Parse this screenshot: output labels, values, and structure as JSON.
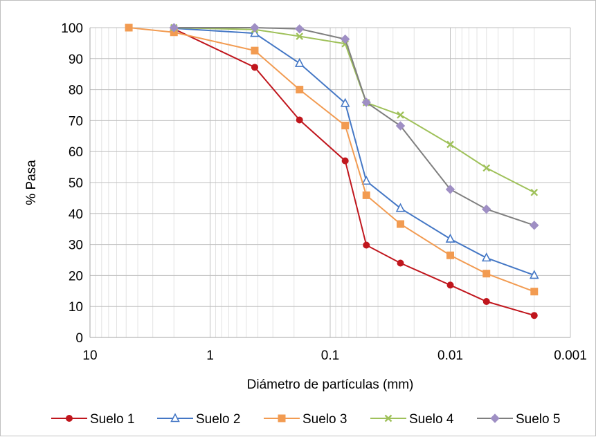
{
  "chart_data": {
    "type": "line",
    "x_scale": "log",
    "x_reversed": true,
    "xlabel": "Diámetro de partículas (mm)",
    "ylabel": "% Pasa",
    "xlim": [
      10,
      0.001
    ],
    "ylim": [
      0,
      100
    ],
    "grid": true,
    "legend_position": "bottom",
    "x_ticks": [
      {
        "value": 10,
        "label": "10"
      },
      {
        "value": 1,
        "label": "1"
      },
      {
        "value": 0.1,
        "label": "0.1"
      },
      {
        "value": 0.01,
        "label": "0.01"
      },
      {
        "value": 0.001,
        "label": "0.001"
      }
    ],
    "y_ticks": [
      {
        "value": 0,
        "label": "0"
      },
      {
        "value": 10,
        "label": "10"
      },
      {
        "value": 20,
        "label": "20"
      },
      {
        "value": 30,
        "label": "30"
      },
      {
        "value": 40,
        "label": "40"
      },
      {
        "value": 50,
        "label": "50"
      },
      {
        "value": 60,
        "label": "60"
      },
      {
        "value": 70,
        "label": "70"
      },
      {
        "value": 80,
        "label": "80"
      },
      {
        "value": 90,
        "label": "90"
      },
      {
        "value": 100,
        "label": "100"
      }
    ],
    "series": [
      {
        "name": "Suelo 1",
        "color": "#c0161d",
        "marker": "circle",
        "x": [
          2,
          0.425,
          0.18,
          0.075,
          0.05,
          0.026,
          0.01,
          0.005,
          0.002
        ],
        "y": [
          99.6,
          87.2,
          70.2,
          57.0,
          29.8,
          24.0,
          16.9,
          11.6,
          7.1
        ]
      },
      {
        "name": "Suelo 2",
        "color": "#4477c5",
        "marker": "triangle",
        "x": [
          2,
          0.425,
          0.18,
          0.075,
          0.05,
          0.026,
          0.01,
          0.005,
          0.002
        ],
        "y": [
          99.8,
          98.2,
          88.5,
          75.6,
          50.5,
          41.7,
          31.8,
          25.7,
          20.1
        ]
      },
      {
        "name": "Suelo 3",
        "color": "#f29b51",
        "marker": "square",
        "x": [
          4.75,
          2,
          0.425,
          0.18,
          0.075,
          0.05,
          0.026,
          0.01,
          0.005,
          0.002
        ],
        "y": [
          100,
          98.5,
          92.6,
          80.0,
          68.4,
          45.9,
          36.6,
          26.5,
          20.6,
          14.8
        ]
      },
      {
        "name": "Suelo 4",
        "color": "#9fc15a",
        "marker": "cross",
        "x": [
          2,
          0.425,
          0.18,
          0.075,
          0.05,
          0.026,
          0.01,
          0.005,
          0.002
        ],
        "y": [
          100,
          99.4,
          97.2,
          94.8,
          75.8,
          71.8,
          62.3,
          54.7,
          46.8
        ]
      },
      {
        "name": "Suelo 5",
        "color": "#7f7f7f",
        "marker": "diamond",
        "marker_color": "#9f8fc4",
        "x": [
          2,
          0.425,
          0.18,
          0.075,
          0.05,
          0.026,
          0.01,
          0.005,
          0.002
        ],
        "y": [
          100,
          100,
          99.6,
          96.3,
          75.9,
          68.3,
          47.8,
          41.4,
          36.2
        ]
      }
    ]
  }
}
